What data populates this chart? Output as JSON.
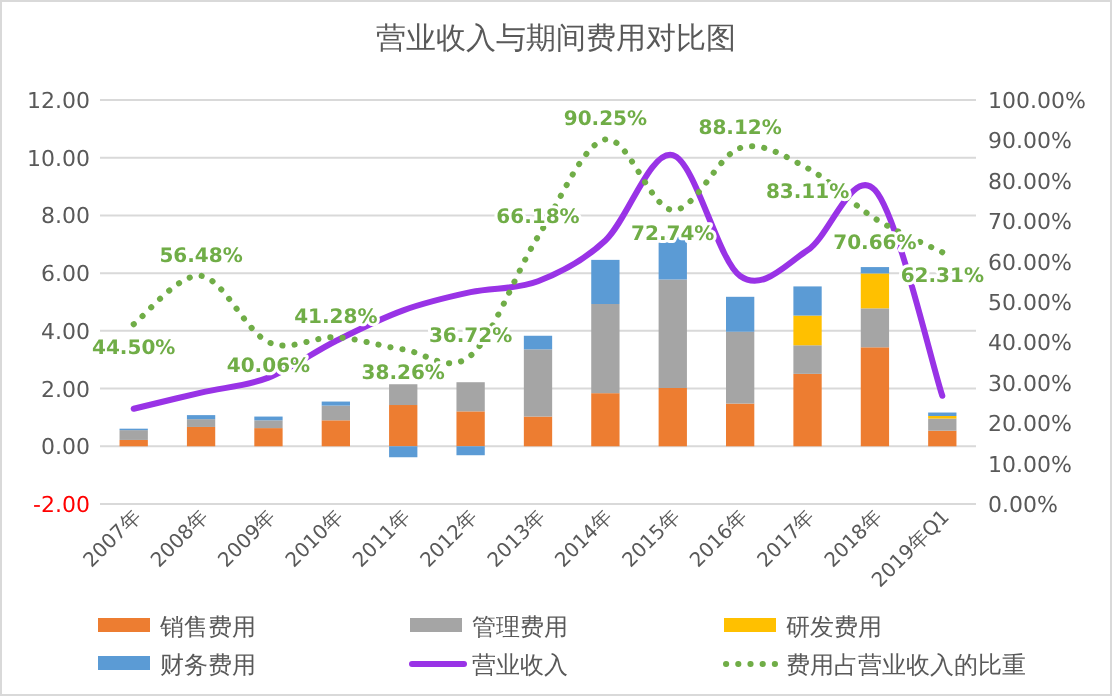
{
  "chart_data": {
    "type": "bar",
    "title": "营业收入与期间费用对比图",
    "stacked": true,
    "categories": [
      "2007年",
      "2008年",
      "2009年",
      "2010年",
      "2011年",
      "2012年",
      "2013年",
      "2014年",
      "2015年",
      "2016年",
      "2017年",
      "2018年",
      "2019年Q1"
    ],
    "series": [
      {
        "name": "销售费用",
        "color": "#ed7d31",
        "values": [
          0.22,
          0.67,
          0.63,
          0.9,
          1.43,
          1.21,
          1.03,
          1.84,
          2.02,
          1.48,
          2.51,
          3.43,
          0.54
        ]
      },
      {
        "name": "管理费用",
        "color": "#a5a5a5",
        "values": [
          0.34,
          0.27,
          0.27,
          0.51,
          0.72,
          1.01,
          2.33,
          3.09,
          3.76,
          2.49,
          0.99,
          1.35,
          0.42
        ]
      },
      {
        "name": "研发费用",
        "color": "#ffc000",
        "values": [
          null,
          null,
          null,
          null,
          null,
          null,
          null,
          null,
          null,
          null,
          1.03,
          1.21,
          0.09
        ]
      },
      {
        "name": "财务费用",
        "color": "#5b9bd5",
        "values": [
          0.05,
          0.14,
          0.13,
          0.14,
          -0.38,
          -0.31,
          0.47,
          1.53,
          1.48,
          1.21,
          1.01,
          0.22,
          0.12
        ]
      },
      {
        "name": "营业收入",
        "type": "line",
        "color": "#9933e6",
        "values": [
          1.3,
          1.86,
          2.38,
          3.65,
          4.71,
          5.34,
          5.72,
          7.13,
          10.09,
          5.9,
          6.79,
          8.88,
          1.75
        ]
      },
      {
        "name": "费用占营业收入的比重",
        "type": "line",
        "axis": "y2",
        "line_style": "dotted",
        "color": "#70ad47",
        "values": [
          44.5,
          56.48,
          40.06,
          41.28,
          38.26,
          36.72,
          66.18,
          90.25,
          72.74,
          88.12,
          83.11,
          70.66,
          62.31
        ],
        "value_labels": [
          "44.50%",
          "56.48%",
          "40.06%",
          "41.28%",
          "38.26%",
          "36.72%",
          "66.18%",
          "90.25%",
          "72.74%",
          "88.12%",
          "83.11%",
          "70.66%",
          "62.31%"
        ]
      }
    ],
    "ylim": [
      -2,
      12
    ],
    "yticks": [
      {
        "value": -2,
        "label": "-2.00"
      },
      {
        "value": 0,
        "label": "0.00"
      },
      {
        "value": 2,
        "label": "2.00"
      },
      {
        "value": 4,
        "label": "4.00"
      },
      {
        "value": 6,
        "label": "6.00"
      },
      {
        "value": 8,
        "label": "8.00"
      },
      {
        "value": 10,
        "label": "10.00"
      },
      {
        "value": 12,
        "label": "12.00"
      }
    ],
    "y2lim": [
      0,
      100
    ],
    "y2ticks": [
      {
        "value": 0,
        "label": "0.00%"
      },
      {
        "value": 10,
        "label": "10.00%"
      },
      {
        "value": 20,
        "label": "20.00%"
      },
      {
        "value": 30,
        "label": "30.00%"
      },
      {
        "value": 40,
        "label": "40.00%"
      },
      {
        "value": 50,
        "label": "50.00%"
      },
      {
        "value": 60,
        "label": "60.00%"
      },
      {
        "value": 70,
        "label": "70.00%"
      },
      {
        "value": 80,
        "label": "80.00%"
      },
      {
        "value": 90,
        "label": "90.00%"
      },
      {
        "value": 100,
        "label": "100.00%"
      }
    ],
    "grid": "y",
    "legend": "bottom",
    "marker": "none"
  }
}
